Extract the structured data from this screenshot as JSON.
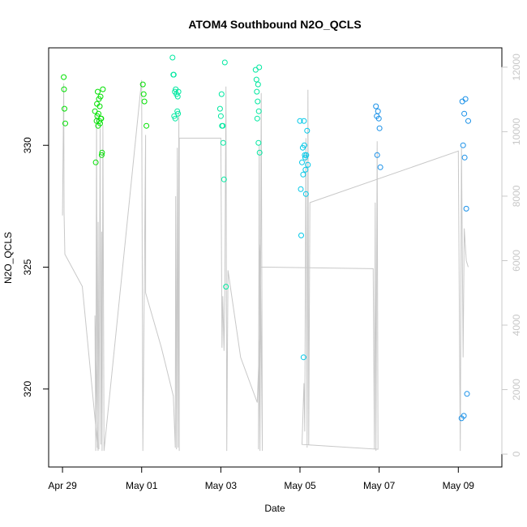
{
  "chart_data": {
    "type": "scatter",
    "title": "ATOM4 Southbound N2O_QCLS",
    "xlabel": "Date",
    "ylabel": "N2O_QCLS",
    "x_ticks": [
      "Apr 29",
      "May 01",
      "May 03",
      "May 05",
      "May 07",
      "May 09"
    ],
    "x_tick_days": [
      0,
      2,
      4,
      6,
      8,
      10
    ],
    "xlim": [
      -0.35,
      11.1
    ],
    "ylim": [
      316.8,
      334.0
    ],
    "y_ticks": [
      320,
      325,
      330
    ],
    "y2lim": [
      -400,
      12600
    ],
    "y2_ticks": [
      0,
      2000,
      4000,
      6000,
      8000,
      10000,
      12000
    ],
    "y2_color": "#c8c8c8",
    "grid": false,
    "series": [
      {
        "kind": "points",
        "color_scale": [
          "#00e000",
          "#00e8a0",
          "#00c8e8",
          "#1890e8"
        ],
        "points": [
          [
            0.03,
            332.8
          ],
          [
            0.04,
            332.3
          ],
          [
            0.05,
            331.5
          ],
          [
            0.07,
            330.9
          ],
          [
            0.82,
            331.4
          ],
          [
            0.84,
            329.3
          ],
          [
            0.86,
            331.0
          ],
          [
            0.87,
            331.7
          ],
          [
            0.88,
            331.2
          ],
          [
            0.89,
            332.2
          ],
          [
            0.9,
            330.8
          ],
          [
            0.91,
            331.3
          ],
          [
            0.92,
            331.9
          ],
          [
            0.93,
            331.0
          ],
          [
            0.94,
            331.6
          ],
          [
            0.95,
            330.9
          ],
          [
            0.96,
            332.0
          ],
          [
            0.97,
            331.1
          ],
          [
            0.98,
            331.1
          ],
          [
            0.99,
            329.6
          ],
          [
            1.0,
            329.7
          ],
          [
            1.02,
            332.3
          ],
          [
            2.03,
            332.5
          ],
          [
            2.05,
            332.1
          ],
          [
            2.07,
            331.8
          ],
          [
            2.12,
            330.8
          ],
          [
            2.78,
            333.6
          ],
          [
            2.8,
            332.9
          ],
          [
            2.81,
            332.9
          ],
          [
            2.82,
            331.2
          ],
          [
            2.84,
            332.2
          ],
          [
            2.85,
            331.1
          ],
          [
            2.86,
            332.3
          ],
          [
            2.88,
            332.1
          ],
          [
            2.9,
            331.4
          ],
          [
            2.91,
            332.0
          ],
          [
            2.92,
            331.3
          ],
          [
            2.93,
            332.2
          ],
          [
            3.98,
            331.5
          ],
          [
            4.0,
            331.2
          ],
          [
            4.02,
            332.1
          ],
          [
            4.03,
            330.8
          ],
          [
            4.05,
            330.8
          ],
          [
            4.06,
            330.1
          ],
          [
            4.08,
            328.6
          ],
          [
            4.1,
            333.4
          ],
          [
            4.13,
            324.2
          ],
          [
            4.88,
            333.1
          ],
          [
            4.9,
            332.7
          ],
          [
            4.91,
            332.2
          ],
          [
            4.92,
            331.1
          ],
          [
            4.93,
            331.8
          ],
          [
            4.94,
            332.5
          ],
          [
            4.95,
            330.1
          ],
          [
            4.96,
            331.4
          ],
          [
            4.97,
            333.2
          ],
          [
            4.98,
            329.7
          ],
          [
            6.0,
            331.0
          ],
          [
            6.02,
            328.2
          ],
          [
            6.03,
            326.3
          ],
          [
            6.05,
            329.3
          ],
          [
            6.07,
            329.9
          ],
          [
            6.08,
            328.8
          ],
          [
            6.09,
            321.3
          ],
          [
            6.1,
            331.0
          ],
          [
            6.11,
            330.0
          ],
          [
            6.12,
            329.6
          ],
          [
            6.13,
            329.5
          ],
          [
            6.14,
            329.0
          ],
          [
            6.15,
            328.0
          ],
          [
            6.16,
            329.6
          ],
          [
            6.18,
            330.6
          ],
          [
            6.2,
            329.2
          ],
          [
            7.92,
            331.6
          ],
          [
            7.94,
            331.2
          ],
          [
            7.95,
            329.6
          ],
          [
            7.97,
            331.4
          ],
          [
            7.99,
            331.1
          ],
          [
            8.01,
            330.7
          ],
          [
            8.03,
            329.1
          ],
          [
            10.08,
            318.8
          ],
          [
            10.1,
            331.8
          ],
          [
            10.12,
            330.0
          ],
          [
            10.14,
            318.9
          ],
          [
            10.15,
            331.3
          ],
          [
            10.16,
            329.5
          ],
          [
            10.18,
            331.9
          ],
          [
            10.2,
            327.4
          ],
          [
            10.22,
            319.8
          ],
          [
            10.25,
            331.0
          ]
        ]
      },
      {
        "kind": "line",
        "color": "#c8c8c8",
        "axis": "right",
        "points": [
          [
            0.0,
            7400
          ],
          [
            0.03,
            11500
          ],
          [
            0.04,
            7500
          ],
          [
            0.06,
            6200
          ],
          [
            0.5,
            5200
          ],
          [
            0.9,
            100
          ],
          [
            0.82,
            4300
          ],
          [
            0.84,
            100
          ],
          [
            0.86,
            10500
          ],
          [
            0.88,
            200
          ],
          [
            0.9,
            7200
          ],
          [
            0.92,
            150
          ],
          [
            0.95,
            10100
          ],
          [
            0.97,
            300
          ],
          [
            0.99,
            6900
          ],
          [
            1.0,
            100
          ],
          [
            1.02,
            10200
          ],
          [
            1.05,
            100
          ],
          [
            2.0,
            11600
          ],
          [
            2.03,
            100
          ],
          [
            2.1,
            9900
          ],
          [
            2.1,
            5000
          ],
          [
            2.5,
            3300
          ],
          [
            2.8,
            1800
          ],
          [
            2.85,
            200
          ],
          [
            2.86,
            8000
          ],
          [
            2.88,
            150
          ],
          [
            2.9,
            9500
          ],
          [
            2.92,
            200
          ],
          [
            2.94,
            10600
          ],
          [
            2.95,
            100
          ],
          [
            2.95,
            9800
          ],
          [
            4.0,
            9800
          ],
          [
            4.03,
            3300
          ],
          [
            4.05,
            4900
          ],
          [
            4.08,
            3200
          ],
          [
            4.1,
            5000
          ],
          [
            4.13,
            11400
          ],
          [
            4.15,
            100
          ],
          [
            4.18,
            5700
          ],
          [
            4.5,
            3000
          ],
          [
            4.92,
            1600
          ],
          [
            5.0,
            4200
          ],
          [
            4.98,
            6500
          ],
          [
            5.0,
            5800
          ],
          [
            4.95,
            150
          ],
          [
            4.97,
            9600
          ],
          [
            4.99,
            100
          ],
          [
            5.02,
            11200
          ],
          [
            5.05,
            100
          ],
          [
            5.0,
            5800
          ],
          [
            7.85,
            5750
          ],
          [
            7.88,
            150
          ],
          [
            7.9,
            7800
          ],
          [
            7.92,
            100
          ],
          [
            7.95,
            9700
          ],
          [
            7.97,
            150
          ],
          [
            6.05,
            300
          ],
          [
            6.1,
            2200
          ],
          [
            6.12,
            700
          ],
          [
            6.15,
            9800
          ],
          [
            6.18,
            200
          ],
          [
            6.2,
            11300
          ],
          [
            6.22,
            300
          ],
          [
            6.25,
            7800
          ],
          [
            10.0,
            9400
          ],
          [
            10.05,
            100
          ],
          [
            10.08,
            9500
          ],
          [
            10.12,
            3000
          ],
          [
            10.15,
            7000
          ],
          [
            10.2,
            6000
          ],
          [
            10.25,
            5800
          ]
        ]
      }
    ]
  }
}
